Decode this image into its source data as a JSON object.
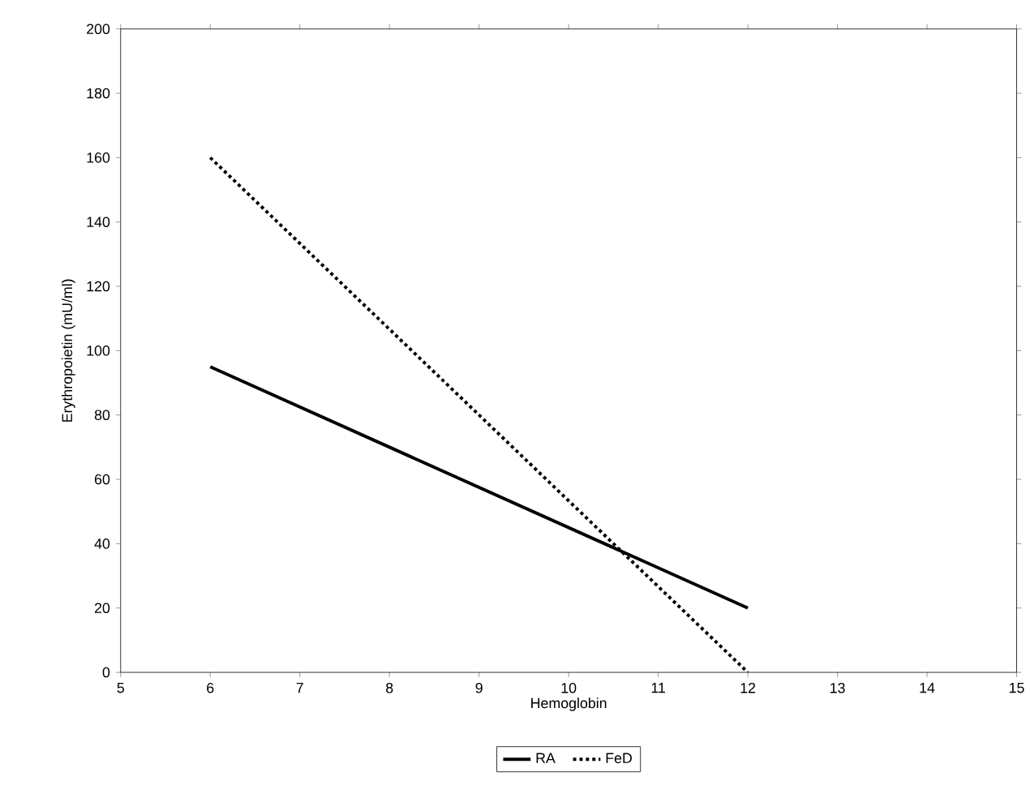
{
  "chart_data": {
    "type": "line",
    "xlabel": "Hemoglobin",
    "ylabel": "Erythropoietin  (mU/ml)",
    "x": [
      6,
      12
    ],
    "xlim": [
      5,
      15
    ],
    "xticks": [
      5,
      6,
      7,
      8,
      9,
      10,
      11,
      12,
      13,
      14,
      15
    ],
    "ylim": [
      0,
      200
    ],
    "yticks": [
      0,
      20,
      40,
      60,
      80,
      100,
      120,
      140,
      160,
      180,
      200
    ],
    "legend": "bottom",
    "marker": "none",
    "grid": false,
    "series": [
      {
        "name": "RA",
        "color": "#000000",
        "line_style": "solid",
        "values": [
          95,
          20
        ]
      },
      {
        "name": "FeD",
        "color": "#000000",
        "line_style": "dotted",
        "values": [
          160,
          0
        ]
      }
    ]
  }
}
